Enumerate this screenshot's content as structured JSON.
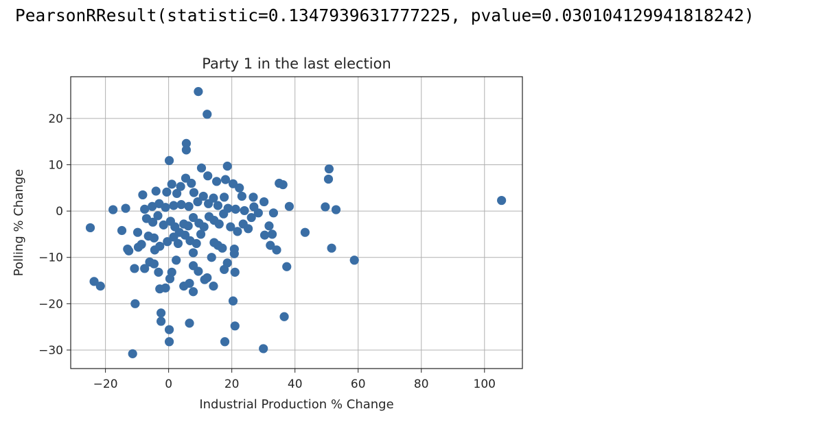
{
  "output": {
    "text": "PearsonRResult(statistic=0.1347939631777225, pvalue=0.030104129941818242)"
  },
  "chart_data": {
    "type": "scatter",
    "title": "Party 1 in the last election",
    "xlabel": "Industrial Production % Change",
    "ylabel": "Polling % Change",
    "xlim": [
      -31,
      112
    ],
    "ylim": [
      -34,
      29
    ],
    "xticks": [
      -20,
      0,
      20,
      40,
      60,
      80,
      100
    ],
    "yticks": [
      -30,
      -20,
      -10,
      0,
      10,
      20
    ],
    "xtick_labels": [
      "−20",
      "0",
      "20",
      "40",
      "60",
      "80",
      "100"
    ],
    "ytick_labels": [
      "−30",
      "−20",
      "−10",
      "0",
      "10",
      "20"
    ],
    "grid": true,
    "marker_color": "#3a6ea5",
    "points": [
      [
        9.4,
        25.8
      ],
      [
        12.2,
        20.9
      ],
      [
        5.6,
        14.6
      ],
      [
        5.6,
        13.2
      ],
      [
        0.2,
        10.9
      ],
      [
        18.6,
        9.7
      ],
      [
        10.4,
        9.3
      ],
      [
        50.8,
        9.1
      ],
      [
        50.6,
        6.9
      ],
      [
        12.4,
        7.6
      ],
      [
        5.4,
        7.1
      ],
      [
        7.2,
        6.0
      ],
      [
        15.2,
        6.4
      ],
      [
        18.0,
        6.8
      ],
      [
        20.4,
        5.9
      ],
      [
        22.4,
        5.0
      ],
      [
        35.0,
        6.0
      ],
      [
        36.2,
        5.7
      ],
      [
        3.8,
        5.3
      ],
      [
        1.0,
        5.8
      ],
      [
        -0.6,
        4.1
      ],
      [
        -4.0,
        4.3
      ],
      [
        -8.2,
        3.5
      ],
      [
        2.6,
        3.8
      ],
      [
        8.0,
        4.0
      ],
      [
        11.0,
        3.2
      ],
      [
        14.2,
        2.8
      ],
      [
        17.6,
        3.0
      ],
      [
        23.2,
        3.2
      ],
      [
        26.8,
        3.0
      ],
      [
        30.2,
        2.0
      ],
      [
        -17.6,
        0.3
      ],
      [
        -13.6,
        0.6
      ],
      [
        -7.6,
        0.4
      ],
      [
        -5.2,
        1.0
      ],
      [
        -3.0,
        1.6
      ],
      [
        -1.0,
        0.8
      ],
      [
        1.6,
        1.2
      ],
      [
        4.0,
        1.4
      ],
      [
        6.4,
        1.0
      ],
      [
        9.2,
        2.0
      ],
      [
        12.6,
        1.6
      ],
      [
        15.6,
        1.2
      ],
      [
        18.8,
        0.6
      ],
      [
        21.2,
        0.4
      ],
      [
        24.0,
        0.1
      ],
      [
        27.0,
        0.9
      ],
      [
        33.2,
        -0.4
      ],
      [
        38.2,
        1.0
      ],
      [
        49.6,
        0.9
      ],
      [
        53.0,
        0.3
      ],
      [
        105.4,
        2.3
      ],
      [
        -24.8,
        -3.6
      ],
      [
        -14.8,
        -4.2
      ],
      [
        -9.8,
        -4.6
      ],
      [
        -7.0,
        -1.6
      ],
      [
        -5.0,
        -2.4
      ],
      [
        -3.4,
        -1.0
      ],
      [
        -1.6,
        -3.0
      ],
      [
        0.6,
        -2.2
      ],
      [
        2.0,
        -3.4
      ],
      [
        3.4,
        -4.6
      ],
      [
        4.8,
        -2.8
      ],
      [
        6.2,
        -3.2
      ],
      [
        7.8,
        -1.4
      ],
      [
        9.6,
        -2.6
      ],
      [
        11.2,
        -3.4
      ],
      [
        12.8,
        -1.2
      ],
      [
        14.4,
        -2.0
      ],
      [
        16.0,
        -2.8
      ],
      [
        17.4,
        -0.6
      ],
      [
        19.6,
        -3.4
      ],
      [
        21.8,
        -4.4
      ],
      [
        23.6,
        -2.8
      ],
      [
        25.2,
        -3.8
      ],
      [
        26.2,
        -1.4
      ],
      [
        28.4,
        -0.4
      ],
      [
        30.4,
        -5.2
      ],
      [
        31.8,
        -3.2
      ],
      [
        32.8,
        -5.0
      ],
      [
        43.2,
        -4.6
      ],
      [
        -13.0,
        -8.2
      ],
      [
        -9.6,
        -7.8
      ],
      [
        -8.6,
        -7.2
      ],
      [
        -6.4,
        -5.4
      ],
      [
        -4.6,
        -5.8
      ],
      [
        -2.8,
        -7.6
      ],
      [
        -0.4,
        -6.6
      ],
      [
        1.6,
        -5.6
      ],
      [
        3.0,
        -7.0
      ],
      [
        5.2,
        -5.2
      ],
      [
        6.8,
        -6.4
      ],
      [
        8.8,
        -7.0
      ],
      [
        10.2,
        -5.0
      ],
      [
        14.4,
        -6.8
      ],
      [
        15.6,
        -7.4
      ],
      [
        17.0,
        -8.0
      ],
      [
        20.8,
        -8.2
      ],
      [
        32.2,
        -7.4
      ],
      [
        34.2,
        -8.4
      ],
      [
        51.6,
        -8.0
      ],
      [
        -12.6,
        -8.6
      ],
      [
        -4.4,
        -8.4
      ],
      [
        7.8,
        -9.0
      ],
      [
        13.6,
        -10.0
      ],
      [
        20.8,
        -9.2
      ],
      [
        2.4,
        -10.6
      ],
      [
        58.8,
        -10.6
      ],
      [
        -10.8,
        -12.4
      ],
      [
        -7.6,
        -12.4
      ],
      [
        -6.0,
        -11.0
      ],
      [
        -4.6,
        -11.4
      ],
      [
        -3.2,
        -13.2
      ],
      [
        1.0,
        -13.2
      ],
      [
        7.8,
        -11.8
      ],
      [
        9.4,
        -13.0
      ],
      [
        11.4,
        -14.8
      ],
      [
        12.2,
        -14.4
      ],
      [
        14.2,
        -16.2
      ],
      [
        17.6,
        -12.6
      ],
      [
        18.6,
        -11.2
      ],
      [
        21.0,
        -13.2
      ],
      [
        37.4,
        -12.0
      ],
      [
        -23.6,
        -15.2
      ],
      [
        -21.6,
        -16.2
      ],
      [
        -2.8,
        -16.8
      ],
      [
        -1.0,
        -16.6
      ],
      [
        0.4,
        -14.6
      ],
      [
        4.8,
        -16.2
      ],
      [
        6.6,
        -15.6
      ],
      [
        7.8,
        -17.4
      ],
      [
        -10.6,
        -20.0
      ],
      [
        20.4,
        -19.4
      ],
      [
        -2.4,
        -22.0
      ],
      [
        -2.4,
        -23.8
      ],
      [
        6.6,
        -24.2
      ],
      [
        21.0,
        -24.8
      ],
      [
        36.6,
        -22.8
      ],
      [
        0.2,
        -25.6
      ],
      [
        0.2,
        -28.2
      ],
      [
        17.8,
        -28.2
      ],
      [
        30.0,
        -29.7
      ],
      [
        -11.4,
        -30.8
      ]
    ]
  }
}
